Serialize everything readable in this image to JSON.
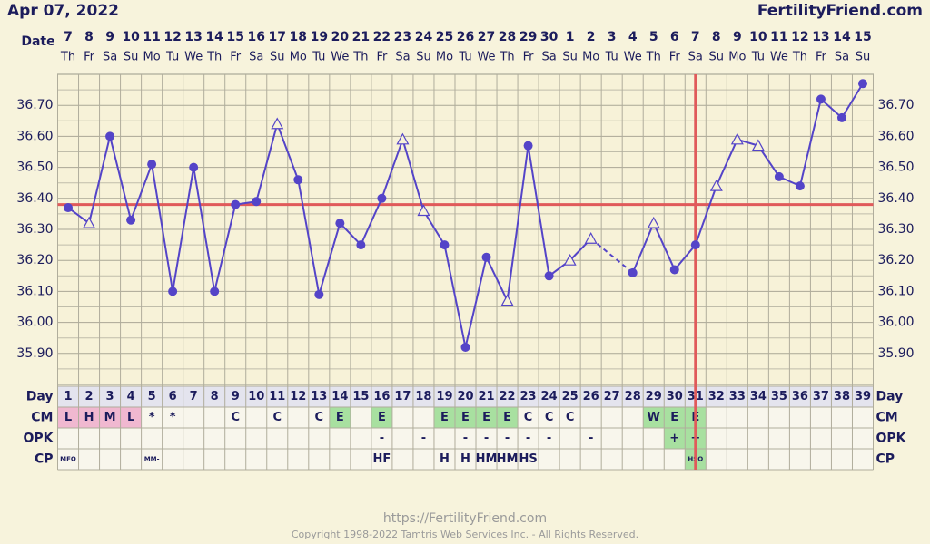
{
  "header": {
    "date": "Apr 07, 2022",
    "site": "FertilityFriend.com"
  },
  "chart_data": {
    "type": "line",
    "date_label": "Date",
    "categories": [
      "7",
      "8",
      "9",
      "10",
      "11",
      "12",
      "13",
      "14",
      "15",
      "16",
      "17",
      "18",
      "19",
      "20",
      "21",
      "22",
      "23",
      "24",
      "25",
      "26",
      "27",
      "28",
      "29",
      "30",
      "1",
      "2",
      "3",
      "4",
      "5",
      "6",
      "7",
      "8",
      "9",
      "10",
      "11",
      "12",
      "13",
      "14",
      "15"
    ],
    "weekdays": [
      "Th",
      "Fr",
      "Sa",
      "Su",
      "Mo",
      "Tu",
      "We",
      "Th",
      "Fr",
      "Sa",
      "Su",
      "Mo",
      "Tu",
      "We",
      "Th",
      "Fr",
      "Sa",
      "Su",
      "Mo",
      "Tu",
      "We",
      "Th",
      "Fr",
      "Sa",
      "Su",
      "Mo",
      "Tu",
      "We",
      "Th",
      "Fr",
      "Sa",
      "Su",
      "Mo",
      "Tu",
      "We",
      "Th",
      "Fr",
      "Sa",
      "Su"
    ],
    "values": [
      36.37,
      36.32,
      36.6,
      36.33,
      36.51,
      36.1,
      36.5,
      36.1,
      36.38,
      36.39,
      36.64,
      36.46,
      36.09,
      36.32,
      36.25,
      36.4,
      36.59,
      36.36,
      36.25,
      35.92,
      36.21,
      36.07,
      36.57,
      36.15,
      36.2,
      36.27,
      null,
      36.16,
      36.32,
      36.17,
      36.25,
      36.44,
      36.59,
      36.57,
      36.47,
      36.44,
      36.72,
      36.66,
      36.77
    ],
    "markers": [
      "dot",
      "open",
      "dot",
      "dot",
      "dot",
      "dot",
      "dot",
      "dot",
      "dot",
      "dot",
      "open",
      "dot",
      "dot",
      "dot",
      "dot",
      "dot",
      "open",
      "open",
      "dot",
      "dot",
      "dot",
      "open",
      "dot",
      "dot",
      "open",
      "open",
      null,
      "dot",
      "open",
      "dot",
      "dot",
      "open",
      "open",
      "open",
      "dot",
      "dot",
      "dot",
      "dot",
      "dot"
    ],
    "color": "#5444c8",
    "ylim": [
      35.8,
      36.8
    ],
    "yticks": [
      {
        "value": 35.9,
        "label": "35.90"
      },
      {
        "value": 36.0,
        "label": "36.00"
      },
      {
        "value": 36.1,
        "label": "36.10"
      },
      {
        "value": 36.2,
        "label": "36.20"
      },
      {
        "value": 36.3,
        "label": "36.30"
      },
      {
        "value": 36.4,
        "label": "36.40"
      },
      {
        "value": 36.5,
        "label": "36.50"
      },
      {
        "value": 36.6,
        "label": "36.60"
      },
      {
        "value": 36.7,
        "label": "36.70"
      }
    ],
    "y_minor_ticks": [
      35.85,
      35.95,
      36.05,
      36.15,
      36.25,
      36.35,
      36.45,
      36.55,
      36.65,
      36.75
    ],
    "grid": true,
    "coverline": 36.38,
    "coverline_color": "#e05a5a",
    "ovulation_day": "31",
    "rows": [
      {
        "label": "Day",
        "cells": [
          "1",
          "2",
          "3",
          "4",
          "5",
          "6",
          "7",
          "8",
          "9",
          "10",
          "11",
          "12",
          "13",
          "14",
          "15",
          "16",
          "17",
          "18",
          "19",
          "20",
          "21",
          "22",
          "23",
          "24",
          "25",
          "26",
          "27",
          "28",
          "29",
          "30",
          "31",
          "32",
          "33",
          "34",
          "35",
          "36",
          "37",
          "38",
          "39"
        ]
      },
      {
        "label": "CM",
        "cells": [
          "L",
          "H",
          "M",
          "L",
          "*",
          "*",
          null,
          null,
          "C",
          null,
          "C",
          null,
          "C",
          "E",
          null,
          "E",
          null,
          null,
          "E",
          "E",
          "E",
          "E",
          "C",
          "C",
          "C",
          null,
          null,
          null,
          "W",
          "E",
          "E",
          null,
          null,
          null,
          null,
          null,
          null,
          null,
          null
        ],
        "fills": [
          "#f0b8d0",
          "#f0b8d0",
          "#f0b8d0",
          "#f0b8d0",
          null,
          null,
          null,
          null,
          null,
          null,
          null,
          null,
          null,
          "#a8e0a0",
          null,
          "#a8e0a0",
          null,
          null,
          "#a8e0a0",
          "#a8e0a0",
          "#a8e0a0",
          "#a8e0a0",
          null,
          null,
          null,
          null,
          null,
          null,
          "#a8e0a0",
          "#a8e0a0",
          "#a8e0a0",
          null,
          null,
          null,
          null,
          null,
          null,
          null,
          null
        ]
      },
      {
        "label": "OPK",
        "cells": [
          null,
          null,
          null,
          null,
          null,
          null,
          null,
          null,
          null,
          null,
          null,
          null,
          null,
          null,
          null,
          "-",
          null,
          "-",
          null,
          "-",
          "-",
          "-",
          "-",
          "-",
          null,
          "-",
          null,
          null,
          null,
          "+",
          "+",
          null,
          null,
          null,
          null,
          null,
          null,
          null,
          null
        ],
        "fills": [
          null,
          null,
          null,
          null,
          null,
          null,
          null,
          null,
          null,
          null,
          null,
          null,
          null,
          null,
          null,
          null,
          null,
          null,
          null,
          null,
          null,
          null,
          null,
          null,
          null,
          null,
          null,
          null,
          null,
          "#a8e0a0",
          "#a8e0a0",
          null,
          null,
          null,
          null,
          null,
          null,
          null,
          null
        ]
      },
      {
        "label": "CP",
        "cells": [
          "MFO",
          null,
          null,
          null,
          "MM-",
          null,
          null,
          null,
          null,
          null,
          null,
          null,
          null,
          null,
          null,
          "HF",
          null,
          null,
          "H",
          "H",
          "HM",
          "HM",
          "HS",
          null,
          null,
          null,
          null,
          null,
          null,
          null,
          "HSO",
          null,
          null,
          null,
          null,
          null,
          null,
          null,
          null
        ],
        "fills": [
          null,
          null,
          null,
          null,
          null,
          null,
          null,
          null,
          null,
          null,
          null,
          null,
          null,
          null,
          null,
          null,
          null,
          null,
          null,
          null,
          null,
          null,
          null,
          null,
          null,
          null,
          null,
          null,
          null,
          null,
          "#a8e0a0",
          null,
          null,
          null,
          null,
          null,
          null,
          null,
          null
        ]
      }
    ]
  },
  "footer": {
    "url": "https://FertilityFriend.com",
    "copyright": "Copyright 1998-2022 Tamtris Web Services Inc. - All Rights Reserved."
  }
}
